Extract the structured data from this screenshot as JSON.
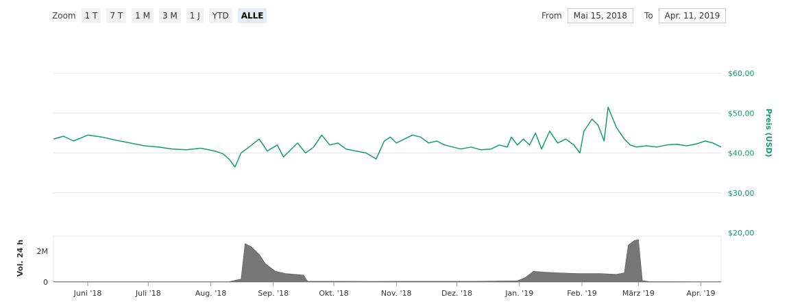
{
  "toolbar": {
    "zoom_label": "Zoom",
    "buttons": [
      "1 T",
      "7 T",
      "1 M",
      "3 M",
      "1 J",
      "YTD",
      "ALLE"
    ],
    "active": "ALLE",
    "from_label": "From",
    "from_value": "Mai 15, 2018",
    "to_label": "To",
    "to_value": "Apr. 11, 2019"
  },
  "colors": {
    "price_line": "#0d9e6e",
    "volume_area": "#777777",
    "grid": "#e6e6e6"
  },
  "chart_data": [
    {
      "type": "line",
      "ylabel": "Preis (USD)",
      "yticks": [
        "$20,00",
        "$30,00",
        "$40,00",
        "$50,00",
        "$60,00"
      ],
      "ylim": [
        20,
        60
      ],
      "xlim": [
        "2018-05-15",
        "2019-04-11"
      ],
      "xticks": [
        "Juni '18",
        "Juli '18",
        "Aug. '18",
        "Sep. '18",
        "Okt. '18",
        "Nov. '18",
        "Dez. '18",
        "Jan. '19",
        "Feb. '19",
        "März '19",
        "Apr. '19"
      ],
      "series": [
        {
          "values_x": [
            "2018-05-15",
            "2018-05-20",
            "2018-05-25",
            "2018-06-01",
            "2018-06-08",
            "2018-06-15",
            "2018-06-22",
            "2018-06-29",
            "2018-07-06",
            "2018-07-13",
            "2018-07-20",
            "2018-07-27",
            "2018-08-03",
            "2018-08-07",
            "2018-08-10",
            "2018-08-13",
            "2018-08-16",
            "2018-08-20",
            "2018-08-25",
            "2018-08-29",
            "2018-09-03",
            "2018-09-06",
            "2018-09-09",
            "2018-09-13",
            "2018-09-17",
            "2018-09-21",
            "2018-09-25",
            "2018-09-29",
            "2018-10-03",
            "2018-10-07",
            "2018-10-12",
            "2018-10-17",
            "2018-10-22",
            "2018-10-26",
            "2018-10-29",
            "2018-11-01",
            "2018-11-05",
            "2018-11-09",
            "2018-11-13",
            "2018-11-17",
            "2018-11-21",
            "2018-11-25",
            "2018-11-29",
            "2018-12-03",
            "2018-12-08",
            "2018-12-13",
            "2018-12-18",
            "2018-12-22",
            "2018-12-26",
            "2018-12-28",
            "2018-12-31",
            "2019-01-03",
            "2019-01-06",
            "2019-01-09",
            "2019-01-12",
            "2019-01-16",
            "2019-01-20",
            "2019-01-24",
            "2019-01-28",
            "2019-01-31",
            "2019-02-02",
            "2019-02-06",
            "2019-02-09",
            "2019-02-12",
            "2019-02-14",
            "2019-02-16",
            "2019-02-18",
            "2019-02-20",
            "2019-02-22",
            "2019-02-25",
            "2019-02-28",
            "2019-03-05",
            "2019-03-10",
            "2019-03-15",
            "2019-03-20",
            "2019-03-25",
            "2019-03-30",
            "2019-04-03",
            "2019-04-07",
            "2019-04-11"
          ],
          "values": [
            43.5,
            44.2,
            43.0,
            44.5,
            44.0,
            43.2,
            42.5,
            41.8,
            41.5,
            41.0,
            40.8,
            41.2,
            40.5,
            39.8,
            38.5,
            36.5,
            40.0,
            41.5,
            43.5,
            40.5,
            42.0,
            39.0,
            40.5,
            42.5,
            40.0,
            41.5,
            44.5,
            42.0,
            42.5,
            41.0,
            40.5,
            40.0,
            38.5,
            43.0,
            44.0,
            42.5,
            43.5,
            44.5,
            44.0,
            42.5,
            43.0,
            42.0,
            41.5,
            41.0,
            41.5,
            40.8,
            41.0,
            42.0,
            41.5,
            44.0,
            42.0,
            43.5,
            42.0,
            45.0,
            41.0,
            45.5,
            42.5,
            43.5,
            42.0,
            40.0,
            45.5,
            48.5,
            47.0,
            43.0,
            51.5,
            49.0,
            46.5,
            45.0,
            43.5,
            42.0,
            41.5,
            41.8,
            41.5,
            42.0,
            42.2,
            41.8,
            42.3,
            43.0,
            42.5,
            41.5
          ]
        }
      ]
    },
    {
      "type": "area",
      "ylabel": "Vol. 24 h",
      "yticks": [
        "0",
        "2M"
      ],
      "series": [
        {
          "values_x": [
            "2018-05-15",
            "2018-08-10",
            "2018-08-16",
            "2018-08-18",
            "2018-08-21",
            "2018-08-25",
            "2018-08-28",
            "2018-09-02",
            "2018-09-07",
            "2018-09-12",
            "2018-09-16",
            "2018-09-18",
            "2018-10-01",
            "2018-10-20",
            "2018-11-05",
            "2018-11-20",
            "2018-12-10",
            "2018-12-31",
            "2019-01-04",
            "2019-01-08",
            "2019-01-13",
            "2019-01-20",
            "2019-01-30",
            "2019-02-10",
            "2019-02-18",
            "2019-02-22",
            "2019-02-24",
            "2019-02-27",
            "2019-03-01",
            "2019-03-03",
            "2019-03-06",
            "2019-04-11"
          ],
          "values": [
            0.02,
            0.02,
            0.2,
            2.5,
            2.3,
            1.8,
            1.2,
            0.7,
            0.55,
            0.5,
            0.45,
            0.05,
            0.05,
            0.04,
            0.05,
            0.05,
            0.05,
            0.08,
            0.3,
            0.7,
            0.65,
            0.6,
            0.55,
            0.55,
            0.5,
            0.6,
            2.4,
            2.7,
            2.75,
            0.1,
            0.03,
            0.02
          ]
        }
      ]
    }
  ]
}
